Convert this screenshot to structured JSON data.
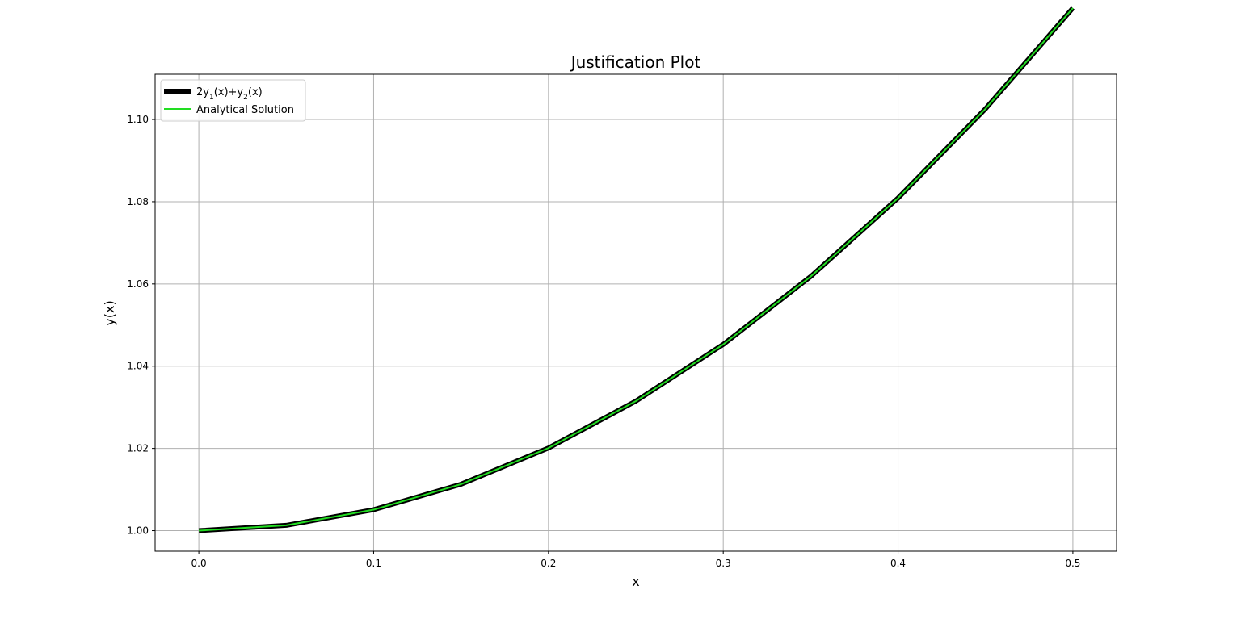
{
  "chart_data": {
    "type": "line",
    "title": "Justification Plot",
    "xlabel": "x",
    "ylabel": "y(x)",
    "xlim": [
      -0.025,
      0.525
    ],
    "ylim": [
      0.995,
      1.111
    ],
    "x_ticks": [
      "0.0",
      "0.1",
      "0.2",
      "0.3",
      "0.4",
      "0.5"
    ],
    "y_ticks": [
      "1.00",
      "1.02",
      "1.04",
      "1.06",
      "1.08",
      "1.10"
    ],
    "grid": true,
    "legend_position": "upper-left",
    "x": [
      0.0,
      0.05,
      0.1,
      0.15,
      0.2,
      0.25,
      0.3,
      0.35,
      0.4,
      0.45,
      0.5
    ],
    "series": [
      {
        "name": "2y₁(x)+y₂(x)",
        "color": "#000000",
        "values": [
          1.0,
          1.0013,
          1.0051,
          1.0113,
          1.0201,
          1.0315,
          1.0453,
          1.0618,
          1.0809,
          1.1026,
          1.1271
        ]
      },
      {
        "name": "Analytical Solution",
        "color": "#22dd22",
        "values": [
          1.0,
          1.0013,
          1.0051,
          1.0113,
          1.0201,
          1.0315,
          1.0453,
          1.0618,
          1.0809,
          1.1026,
          1.1271
        ]
      }
    ]
  }
}
